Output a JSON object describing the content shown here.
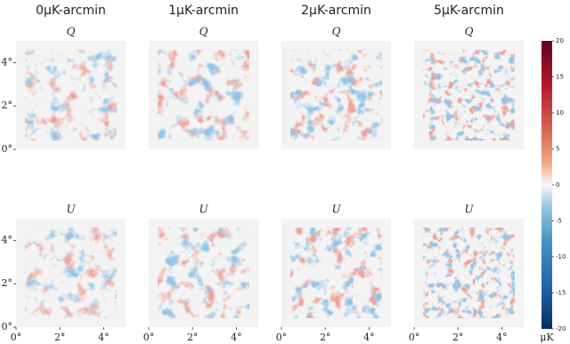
{
  "chart_data": {
    "type": "image-grid",
    "columns": [
      "0μK-arcmin",
      "1μK-arcmin",
      "2μK-arcmin",
      "5μK-arcmin"
    ],
    "rows": [
      "Q",
      "U"
    ],
    "xlim": [
      0,
      5
    ],
    "ylim": [
      0,
      5
    ],
    "xticks": [
      {
        "value": 0,
        "label": "0°"
      },
      {
        "value": 2,
        "label": "2°"
      },
      {
        "value": 4,
        "label": "4°"
      }
    ],
    "yticks": [
      {
        "value": 0,
        "label": "0°"
      },
      {
        "value": 2,
        "label": "2°"
      },
      {
        "value": 4,
        "label": "4°"
      }
    ],
    "colorbar": {
      "label": "μK",
      "lim": [
        -20,
        20
      ],
      "ticks": [
        -20,
        -15,
        -10,
        -5,
        0,
        5,
        10,
        15,
        20
      ]
    }
  }
}
